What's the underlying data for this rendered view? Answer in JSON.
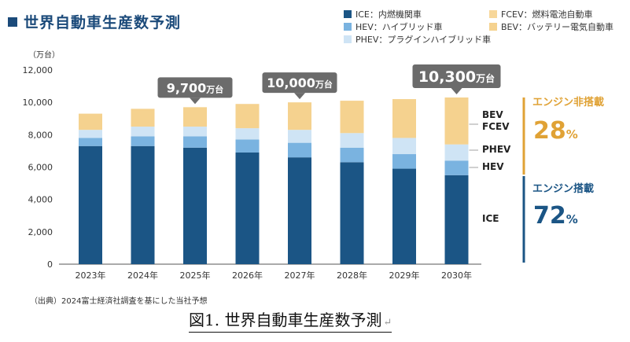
{
  "title": "世界自動車生産数予測",
  "chart_data": {
    "type": "bar",
    "stacked": true,
    "title": "世界自動車生産数予測",
    "unit": "（万台）",
    "categories": [
      "2023年",
      "2024年",
      "2025年",
      "2026年",
      "2027年",
      "2028年",
      "2029年",
      "2030年"
    ],
    "ylim": [
      0,
      12000
    ],
    "yticks": [
      "0",
      "2,000",
      "4,000",
      "6,000",
      "8,000",
      "10,000",
      "12,000"
    ],
    "grid": false,
    "legend_position": "top-right",
    "series": [
      {
        "key": "ice",
        "name": "ICE：内燃機関車",
        "label": "ICE",
        "color": "#1b5585",
        "values": [
          7300,
          7300,
          7200,
          6900,
          6600,
          6300,
          5900,
          5500
        ]
      },
      {
        "key": "hev",
        "name": "HEV：ハイブリッド車",
        "label": "HEV",
        "color": "#7ab3e0",
        "values": [
          500,
          600,
          700,
          800,
          900,
          900,
          900,
          900
        ]
      },
      {
        "key": "phev",
        "name": "PHEV：プラグインハイブリッド車",
        "label": "PHEV",
        "color": "#cfe4f5",
        "values": [
          500,
          600,
          600,
          700,
          800,
          900,
          1000,
          1000
        ]
      },
      {
        "key": "fcev",
        "name": "FCEV：燃料電池自動車",
        "label": "FCEV",
        "color": "#f7d79a",
        "values": [
          0,
          0,
          0,
          0,
          0,
          0,
          0,
          0
        ]
      },
      {
        "key": "bev",
        "name": "BEV：バッテリー電気自動車",
        "label": "BEV",
        "color": "#f5d28f",
        "values": [
          1000,
          1100,
          1200,
          1500,
          1700,
          2000,
          2400,
          2900
        ]
      }
    ],
    "callouts": [
      {
        "index": 2,
        "value": "9,700",
        "unit": "万台"
      },
      {
        "index": 4,
        "value": "10,000",
        "unit": "万台"
      },
      {
        "index": 7,
        "value": "10,300",
        "unit": "万台"
      }
    ],
    "right_labels": [
      "BEV",
      "FCEV",
      "PHEV",
      "HEV",
      "ICE"
    ],
    "groups": [
      {
        "label": "エンジン非搭載",
        "value": "28",
        "unit": "%",
        "color": "#e0a235"
      },
      {
        "label": "エンジン搭載",
        "value": "72",
        "unit": "%",
        "color": "#1b5585"
      }
    ]
  },
  "source_note": "（出典）2024富士経済社調査を基にした当社予想",
  "caption": "図1.  世界自動車生産数予測",
  "caption_mark": "↵"
}
